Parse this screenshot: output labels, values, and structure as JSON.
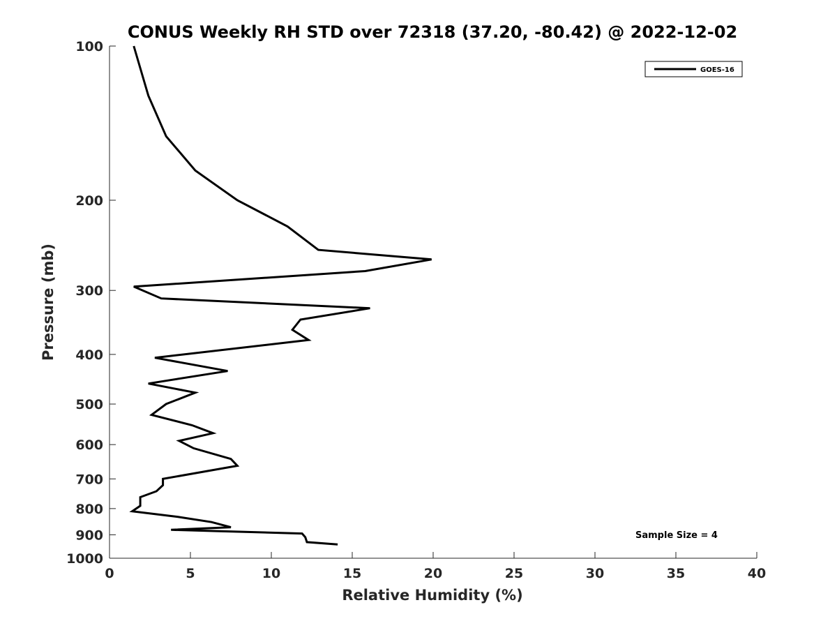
{
  "chart_data": {
    "type": "line",
    "title": "CONUS Weekly RH STD over 72318 (37.20, -80.42) @ 2022-12-02",
    "xlabel": "Relative Humidity (%)",
    "ylabel": "Pressure (mb)",
    "xlim": [
      0,
      40
    ],
    "ylim": [
      100,
      1000
    ],
    "y_scale": "log",
    "y_reversed": true,
    "xticks": [
      "0",
      "5",
      "10",
      "15",
      "20",
      "25",
      "30",
      "35",
      "40"
    ],
    "yticks": [
      "100",
      "200",
      "300",
      "400",
      "500",
      "600",
      "700",
      "800",
      "900",
      "1000"
    ],
    "grid": false,
    "legend_position": "top-right",
    "annotation": "Sample Size = 4",
    "series": [
      {
        "name": "GOES-16",
        "color": "#000000",
        "points": [
          [
            1.5,
            100
          ],
          [
            2.4,
            125
          ],
          [
            3.5,
            150
          ],
          [
            5.3,
            175
          ],
          [
            7.9,
            200
          ],
          [
            11.0,
            225
          ],
          [
            12.9,
            250
          ],
          [
            19.9,
            261
          ],
          [
            15.8,
            275
          ],
          [
            1.5,
            295
          ],
          [
            3.2,
            311
          ],
          [
            16.1,
            325
          ],
          [
            11.8,
            342
          ],
          [
            11.3,
            358
          ],
          [
            12.3,
            375
          ],
          [
            2.8,
            406
          ],
          [
            7.3,
            431
          ],
          [
            2.4,
            456
          ],
          [
            5.3,
            475
          ],
          [
            3.5,
            500
          ],
          [
            2.6,
            525
          ],
          [
            5.1,
            550
          ],
          [
            6.4,
            570
          ],
          [
            4.3,
            590
          ],
          [
            5.2,
            610
          ],
          [
            7.5,
            640
          ],
          [
            7.9,
            660
          ],
          [
            3.3,
            700
          ],
          [
            3.3,
            720
          ],
          [
            2.9,
            740
          ],
          [
            1.9,
            760
          ],
          [
            1.9,
            790
          ],
          [
            1.4,
            810
          ],
          [
            4.2,
            830
          ],
          [
            6.3,
            850
          ],
          [
            7.5,
            870
          ],
          [
            3.8,
            880
          ],
          [
            11.9,
            895
          ],
          [
            12.1,
            910
          ],
          [
            12.2,
            930
          ],
          [
            14.1,
            940
          ]
        ]
      }
    ]
  }
}
